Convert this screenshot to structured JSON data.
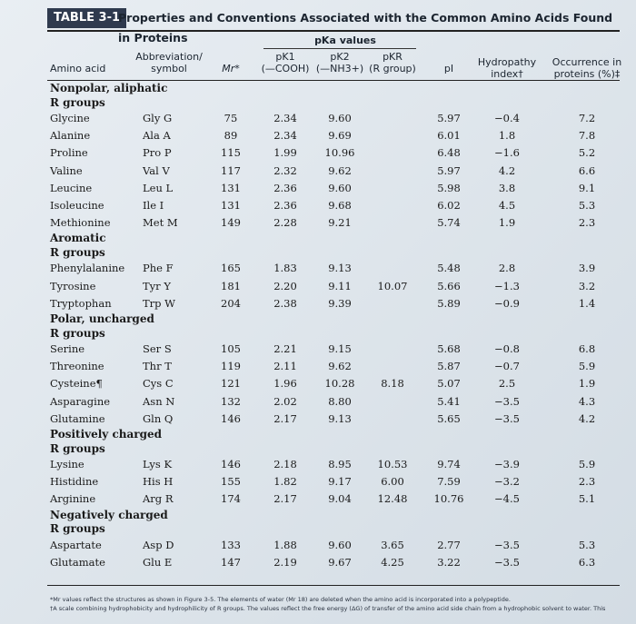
{
  "table": {
    "tag": "TABLE 3-1",
    "caption": "Properties and Conventions Associated with the Common Amino Acids Found in Proteins",
    "pka_group_header": "pKa values",
    "headers": {
      "amino_acid": "Amino acid",
      "abbreviation_line1": "Abbreviation/",
      "abbreviation_line2": "symbol",
      "mr": "Mr*",
      "pk1_line1": "pK1",
      "pk1_line2": "(—COOH)",
      "pk2_line1": "pK2",
      "pk2_line2": "(—NH3+)",
      "pkr_line1": "pKR",
      "pkr_line2": "(R group)",
      "pi": "pI",
      "hydropathy_line1": "Hydropathy",
      "hydropathy_line2": "index†",
      "occurrence_line1": "Occurrence in",
      "occurrence_line2": "proteins (%)‡"
    },
    "groups": [
      {
        "label_line1": "Nonpolar, aliphatic",
        "label_line2": "R groups",
        "rows": [
          {
            "name": "Glycine",
            "abbr": "Gly G",
            "mr": "75",
            "pk1": "2.34",
            "pk2": "9.60",
            "pkr": "",
            "pi": "5.97",
            "hyd": "−0.4",
            "occ": "7.2"
          },
          {
            "name": "Alanine",
            "abbr": "Ala A",
            "mr": "89",
            "pk1": "2.34",
            "pk2": "9.69",
            "pkr": "",
            "pi": "6.01",
            "hyd": "1.8",
            "occ": "7.8"
          },
          {
            "name": "Proline",
            "abbr": "Pro P",
            "mr": "115",
            "pk1": "1.99",
            "pk2": "10.96",
            "pkr": "",
            "pi": "6.48",
            "hyd": "−1.6",
            "occ": "5.2"
          },
          {
            "name": "Valine",
            "abbr": "Val V",
            "mr": "117",
            "pk1": "2.32",
            "pk2": "9.62",
            "pkr": "",
            "pi": "5.97",
            "hyd": "4.2",
            "occ": "6.6"
          },
          {
            "name": "Leucine",
            "abbr": "Leu L",
            "mr": "131",
            "pk1": "2.36",
            "pk2": "9.60",
            "pkr": "",
            "pi": "5.98",
            "hyd": "3.8",
            "occ": "9.1"
          },
          {
            "name": "Isoleucine",
            "abbr": "Ile I",
            "mr": "131",
            "pk1": "2.36",
            "pk2": "9.68",
            "pkr": "",
            "pi": "6.02",
            "hyd": "4.5",
            "occ": "5.3"
          },
          {
            "name": "Methionine",
            "abbr": "Met M",
            "mr": "149",
            "pk1": "2.28",
            "pk2": "9.21",
            "pkr": "",
            "pi": "5.74",
            "hyd": "1.9",
            "occ": "2.3"
          }
        ]
      },
      {
        "label_line1": "Aromatic",
        "label_line2": "R groups",
        "rows": [
          {
            "name": "Phenylalanine",
            "abbr": "Phe F",
            "mr": "165",
            "pk1": "1.83",
            "pk2": "9.13",
            "pkr": "",
            "pi": "5.48",
            "hyd": "2.8",
            "occ": "3.9"
          },
          {
            "name": "Tyrosine",
            "abbr": "Tyr Y",
            "mr": "181",
            "pk1": "2.20",
            "pk2": "9.11",
            "pkr": "10.07",
            "pi": "5.66",
            "hyd": "−1.3",
            "occ": "3.2"
          },
          {
            "name": "Tryptophan",
            "abbr": "Trp W",
            "mr": "204",
            "pk1": "2.38",
            "pk2": "9.39",
            "pkr": "",
            "pi": "5.89",
            "hyd": "−0.9",
            "occ": "1.4"
          }
        ]
      },
      {
        "label_line1": "Polar, uncharged",
        "label_line2": "R groups",
        "rows": [
          {
            "name": "Serine",
            "abbr": "Ser S",
            "mr": "105",
            "pk1": "2.21",
            "pk2": "9.15",
            "pkr": "",
            "pi": "5.68",
            "hyd": "−0.8",
            "occ": "6.8"
          },
          {
            "name": "Threonine",
            "abbr": "Thr T",
            "mr": "119",
            "pk1": "2.11",
            "pk2": "9.62",
            "pkr": "",
            "pi": "5.87",
            "hyd": "−0.7",
            "occ": "5.9"
          },
          {
            "name": "Cysteine¶",
            "abbr": "Cys C",
            "mr": "121",
            "pk1": "1.96",
            "pk2": "10.28",
            "pkr": "8.18",
            "pi": "5.07",
            "hyd": "2.5",
            "occ": "1.9"
          },
          {
            "name": "Asparagine",
            "abbr": "Asn N",
            "mr": "132",
            "pk1": "2.02",
            "pk2": "8.80",
            "pkr": "",
            "pi": "5.41",
            "hyd": "−3.5",
            "occ": "4.3"
          },
          {
            "name": "Glutamine",
            "abbr": "Gln Q",
            "mr": "146",
            "pk1": "2.17",
            "pk2": "9.13",
            "pkr": "",
            "pi": "5.65",
            "hyd": "−3.5",
            "occ": "4.2"
          }
        ]
      },
      {
        "label_line1": "Positively charged",
        "label_line2": "R groups",
        "rows": [
          {
            "name": "Lysine",
            "abbr": "Lys K",
            "mr": "146",
            "pk1": "2.18",
            "pk2": "8.95",
            "pkr": "10.53",
            "pi": "9.74",
            "hyd": "−3.9",
            "occ": "5.9"
          },
          {
            "name": "Histidine",
            "abbr": "His H",
            "mr": "155",
            "pk1": "1.82",
            "pk2": "9.17",
            "pkr": "6.00",
            "pi": "7.59",
            "hyd": "−3.2",
            "occ": "2.3"
          },
          {
            "name": "Arginine",
            "abbr": "Arg R",
            "mr": "174",
            "pk1": "2.17",
            "pk2": "9.04",
            "pkr": "12.48",
            "pi": "10.76",
            "hyd": "−4.5",
            "occ": "5.1"
          }
        ]
      },
      {
        "label_line1": "Negatively charged",
        "label_line2": "R groups",
        "rows": [
          {
            "name": "Aspartate",
            "abbr": "Asp D",
            "mr": "133",
            "pk1": "1.88",
            "pk2": "9.60",
            "pkr": "3.65",
            "pi": "2.77",
            "hyd": "−3.5",
            "occ": "5.3"
          },
          {
            "name": "Glutamate",
            "abbr": "Glu E",
            "mr": "147",
            "pk1": "2.19",
            "pk2": "9.67",
            "pkr": "4.25",
            "pi": "3.22",
            "hyd": "−3.5",
            "occ": "6.3"
          }
        ]
      }
    ],
    "footnotes": [
      "*Mr values reflect the structures as shown in Figure 3-5. The elements of water (Mr 18) are deleted when the amino acid is incorporated into a polypeptide.",
      "†A scale combining hydrophobicity and hydrophilicity of R groups. The values reflect the free energy (ΔG) of transfer of the amino acid side chain from a hydrophobic solvent to water. This"
    ]
  }
}
